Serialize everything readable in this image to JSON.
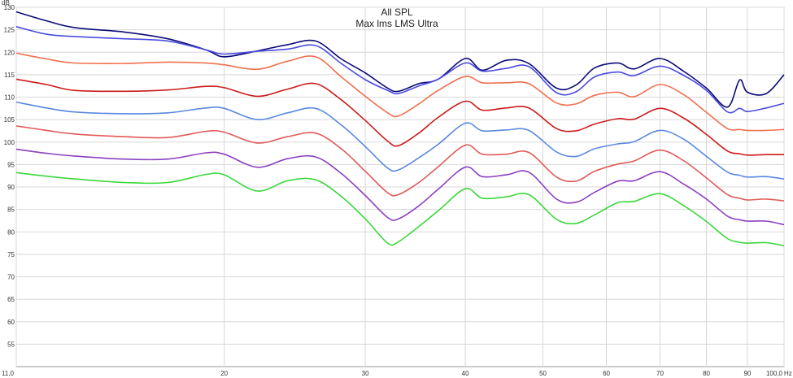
{
  "chart_data": {
    "type": "line",
    "title": "All SPL",
    "subtitle": "Max lms LMS Ultra",
    "y_unit": "dB",
    "x_unit": "Hz",
    "x_scale": "log",
    "xlim": [
      11,
      100
    ],
    "ylim": [
      50,
      130
    ],
    "grid": true,
    "x_ticks": [
      {
        "value": 11,
        "label": "11,0"
      },
      {
        "value": 20,
        "label": "20"
      },
      {
        "value": 30,
        "label": "30"
      },
      {
        "value": 40,
        "label": "40"
      },
      {
        "value": 50,
        "label": "50"
      },
      {
        "value": 60,
        "label": "60"
      },
      {
        "value": 70,
        "label": "70"
      },
      {
        "value": 80,
        "label": "80"
      },
      {
        "value": 90,
        "label": "90"
      },
      {
        "value": 100,
        "label": "100,0"
      }
    ],
    "y_ticks": [
      55,
      60,
      65,
      70,
      75,
      80,
      85,
      90,
      95,
      100,
      105,
      110,
      115,
      120,
      125,
      130
    ],
    "x": [
      11,
      12,
      13,
      15,
      17,
      19,
      20,
      22,
      24,
      26,
      28,
      30,
      32,
      33,
      35,
      37,
      40,
      42,
      45,
      48,
      52,
      55,
      58,
      62,
      65,
      70,
      75,
      80,
      85,
      88,
      90,
      95,
      100
    ],
    "series": [
      {
        "color": "#0a0a78",
        "values": [
          129,
          127,
          125.5,
          124.5,
          123,
          120.5,
          119,
          120.3,
          121.7,
          122.5,
          118.5,
          115.4,
          112,
          111.3,
          113,
          114,
          118.6,
          116,
          118.2,
          117.5,
          112,
          112.7,
          116.5,
          117.6,
          116.3,
          118.6,
          115.7,
          112,
          107.8,
          113.8,
          111.1,
          110.8,
          115
        ]
      },
      {
        "color": "#4a4ade",
        "values": [
          125.7,
          124,
          123.5,
          123,
          122.5,
          120.5,
          119.6,
          120.2,
          120.7,
          121.5,
          117.5,
          113.9,
          111.5,
          110.8,
          112.5,
          114,
          117.6,
          115.8,
          116.4,
          116.8,
          111,
          111.2,
          114.5,
          115.6,
          114.8,
          116.9,
          114.8,
          111.5,
          106.7,
          107.5,
          106.8,
          107.6,
          108.6
        ]
      },
      {
        "color": "#f07050",
        "values": [
          119.8,
          118.5,
          117.6,
          117.5,
          117.8,
          117.6,
          117.2,
          116.2,
          118,
          119,
          114.5,
          110.2,
          106.5,
          105.8,
          108.5,
          111.5,
          114.6,
          113.2,
          113.2,
          113,
          108.7,
          108.5,
          110.4,
          111.1,
          110.1,
          112.8,
          110.5,
          106.6,
          103,
          102.8,
          102.6,
          102.6,
          102.8
        ]
      },
      {
        "color": "#cc1a1a",
        "values": [
          114,
          112.8,
          111.5,
          111.3,
          111.6,
          112.4,
          112.1,
          110.2,
          111.8,
          113,
          109.4,
          104.8,
          100.2,
          99.2,
          102,
          105.5,
          109.1,
          107.1,
          107.6,
          107.6,
          103,
          102.5,
          104,
          105.2,
          105.1,
          107.5,
          105.3,
          101.7,
          98,
          97.4,
          97.1,
          97.2,
          97.2
        ]
      },
      {
        "color": "#5a88e0",
        "values": [
          108.9,
          107.6,
          106.7,
          106.3,
          106.5,
          107.6,
          107.5,
          105,
          106.5,
          107.5,
          103.8,
          99,
          94.2,
          93.8,
          96.5,
          99.5,
          104.2,
          102.5,
          102.7,
          102.6,
          97.8,
          96.8,
          98.5,
          99.6,
          100.1,
          102.6,
          100.6,
          96.8,
          93.3,
          92.6,
          92.2,
          92.3,
          91.8
        ]
      },
      {
        "color": "#e05a58",
        "values": [
          103.6,
          102.6,
          101.8,
          101.2,
          101,
          102.4,
          102.2,
          99.8,
          101.2,
          102,
          98.5,
          93.5,
          88.7,
          88.3,
          91,
          94.5,
          99.3,
          97.3,
          97.3,
          97.7,
          92.2,
          91.3,
          93.5,
          95.1,
          95.8,
          98.2,
          95.8,
          92,
          88.3,
          87.5,
          87.1,
          87.3,
          86.9
        ]
      },
      {
        "color": "#8a40c0",
        "values": [
          98.4,
          97.5,
          96.9,
          96.2,
          96.2,
          97.6,
          97.3,
          94.4,
          96.3,
          96.7,
          93,
          88.1,
          83.2,
          82.9,
          85.8,
          89.5,
          94.4,
          92.3,
          92.7,
          93.3,
          87.3,
          86.6,
          88.8,
          91.3,
          91.4,
          93.4,
          90.6,
          87.3,
          83.5,
          82.7,
          82.4,
          82.4,
          81.6
        ]
      },
      {
        "color": "#3ad83a",
        "values": [
          93.2,
          92.4,
          91.8,
          91,
          91,
          92.8,
          92.7,
          89.1,
          91.4,
          91.6,
          87.9,
          82.9,
          77.5,
          77.8,
          81.2,
          84.7,
          89.6,
          87.5,
          87.8,
          88.3,
          82.8,
          81.9,
          83.8,
          86.5,
          86.8,
          88.5,
          85.8,
          82.3,
          78.5,
          77.7,
          77.5,
          77.6,
          76.9
        ]
      }
    ]
  }
}
